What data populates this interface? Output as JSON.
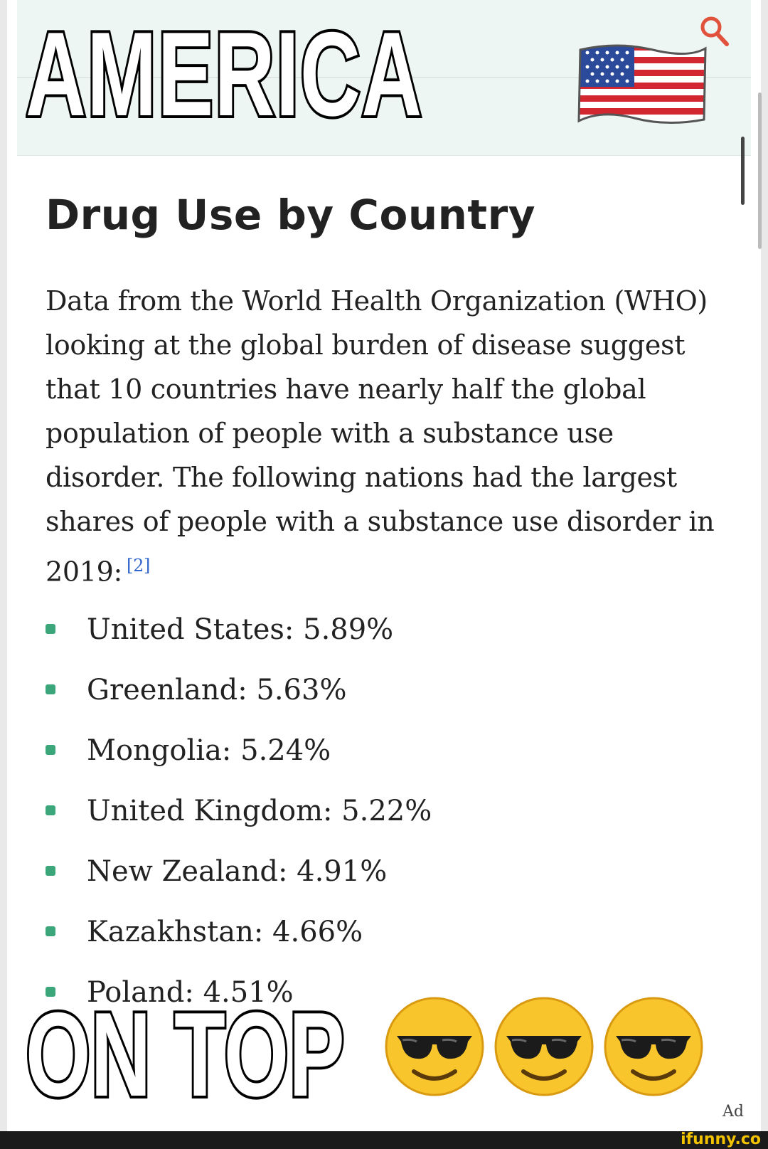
{
  "meme": {
    "top_caption": "AMERICA",
    "bottom_caption": "ON TOP",
    "flag_icon": "us-flag-emoji",
    "emoji_icon": "sunglasses-emoji"
  },
  "article": {
    "title": "Drug Use by Country",
    "paragraph": "Data from the World Health Organization (WHO) looking at the global burden of disease suggest that 10 countries have nearly half the global population of people with a substance use disorder. The following nations had the largest shares of people with a substance use disorder in 2019:",
    "citation": "[2]",
    "items": [
      "United States: 5.89%",
      "Greenland: 5.63%",
      "Mongolia: 5.24%",
      "United Kingdom: 5.22%",
      "New Zealand: 4.91%",
      "Kazakhstan: 4.66%",
      "Poland: 4.51%"
    ]
  },
  "ad_label": "Ad",
  "watermark": "ifunny.co",
  "colors": {
    "bullet": "#3aa67a",
    "header_band": "#eef6f4",
    "search": "#e0523b",
    "watermark": "#f3c300"
  }
}
